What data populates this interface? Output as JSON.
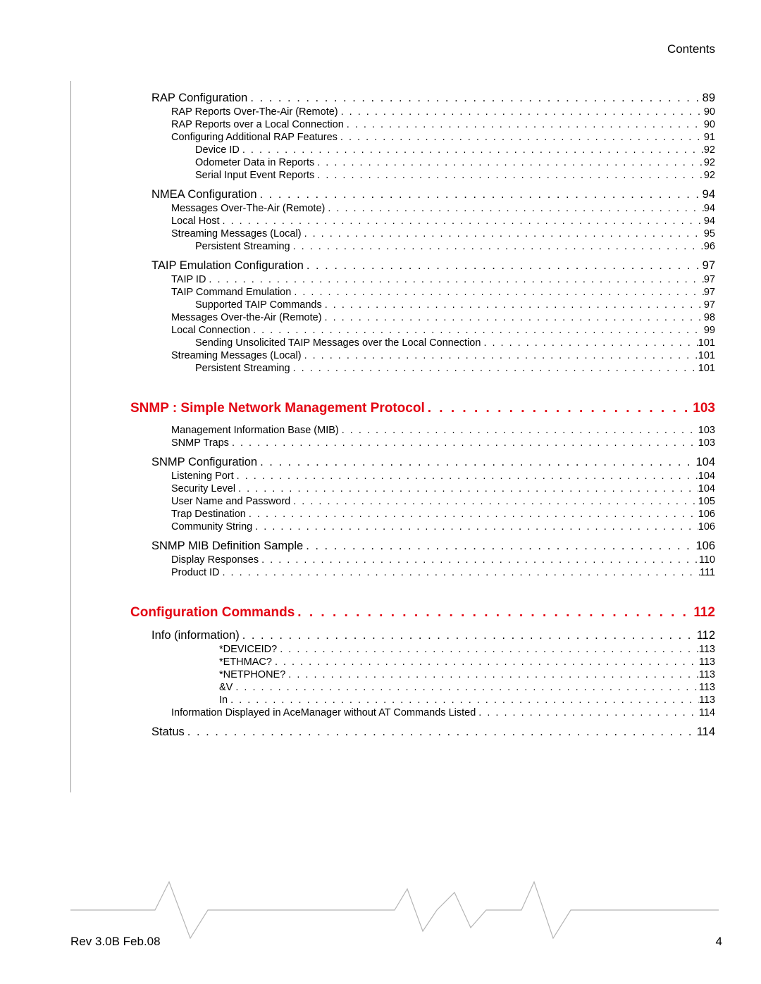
{
  "header": {
    "title": "Contents"
  },
  "footer": {
    "rev": "Rev 3.0B  Feb.08",
    "pagenum": "4"
  },
  "colors": {
    "accent": "#e30613",
    "text": "#000000",
    "rule": "#9a9a9a",
    "wave": "#b5b5b5"
  },
  "toc": [
    {
      "level": 1,
      "label": "RAP Configuration",
      "page": "89"
    },
    {
      "level": 2,
      "label": "RAP Reports Over-The-Air (Remote)",
      "page": "90"
    },
    {
      "level": 2,
      "label": "RAP Reports over a Local Connection",
      "page": "90"
    },
    {
      "level": 2,
      "label": "Configuring Additional RAP Features",
      "page": "91"
    },
    {
      "level": 3,
      "label": "Device ID",
      "page": "92"
    },
    {
      "level": 3,
      "label": "Odometer Data in Reports",
      "page": "92"
    },
    {
      "level": 3,
      "label": "Serial Input Event Reports",
      "page": "92"
    },
    {
      "level": 1,
      "label": "NMEA Configuration",
      "page": "94"
    },
    {
      "level": 2,
      "label": "Messages Over-The-Air (Remote)",
      "page": "94"
    },
    {
      "level": 2,
      "label": "Local Host",
      "page": "94"
    },
    {
      "level": 2,
      "label": "Streaming Messages (Local)",
      "page": "95"
    },
    {
      "level": 3,
      "label": "Persistent Streaming",
      "page": "96"
    },
    {
      "level": 1,
      "label": "TAIP Emulation Configuration",
      "page": "97"
    },
    {
      "level": 2,
      "label": "TAIP ID",
      "page": "97"
    },
    {
      "level": 2,
      "label": "TAIP Command Emulation",
      "page": "97"
    },
    {
      "level": 3,
      "label": "Supported TAIP Commands",
      "page": "97"
    },
    {
      "level": 2,
      "label": "Messages Over-the-Air (Remote)",
      "page": "98"
    },
    {
      "level": 2,
      "label": "Local Connection",
      "page": "99"
    },
    {
      "level": 3,
      "label": "Sending Unsolicited TAIP Messages over the Local Connection",
      "page": "101"
    },
    {
      "level": 2,
      "label": "Streaming Messages (Local)",
      "page": "101"
    },
    {
      "level": 3,
      "label": "Persistent Streaming",
      "page": "101"
    },
    {
      "level": "chapter",
      "label": "SNMP : Simple Network Management Protocol",
      "page": "103"
    },
    {
      "level": 2,
      "label": "Management Information Base (MIB)",
      "page": "103"
    },
    {
      "level": 2,
      "label": "SNMP Traps",
      "page": "103"
    },
    {
      "level": 1,
      "label": "SNMP Configuration",
      "page": "104"
    },
    {
      "level": 2,
      "label": "Listening Port",
      "page": "104"
    },
    {
      "level": 2,
      "label": "Security Level",
      "page": "104"
    },
    {
      "level": 2,
      "label": "User Name and Password",
      "page": "105"
    },
    {
      "level": 2,
      "label": "Trap Destination",
      "page": "106"
    },
    {
      "level": 2,
      "label": "Community String",
      "page": "106"
    },
    {
      "level": 1,
      "label": "SNMP MIB Definition Sample",
      "page": "106"
    },
    {
      "level": 2,
      "label": "Display Responses",
      "page": "110"
    },
    {
      "level": 2,
      "label": "Product ID",
      "page": "111"
    },
    {
      "level": "chapter",
      "label": "Configuration Commands",
      "page": "112"
    },
    {
      "level": 1,
      "label": "Info (information)",
      "page": "112"
    },
    {
      "level": 4,
      "label": "*DEVICEID?",
      "page": "113"
    },
    {
      "level": 4,
      "label": "*ETHMAC?",
      "page": "113"
    },
    {
      "level": 4,
      "label": "*NETPHONE?",
      "page": "113"
    },
    {
      "level": 4,
      "label": "&V",
      "page": "113"
    },
    {
      "level": 4,
      "label": "In",
      "page": "113"
    },
    {
      "level": 2,
      "label": "Information Displayed in AceManager without AT Commands Listed",
      "page": "114"
    },
    {
      "level": 1,
      "label": "Status",
      "page": "114"
    }
  ]
}
